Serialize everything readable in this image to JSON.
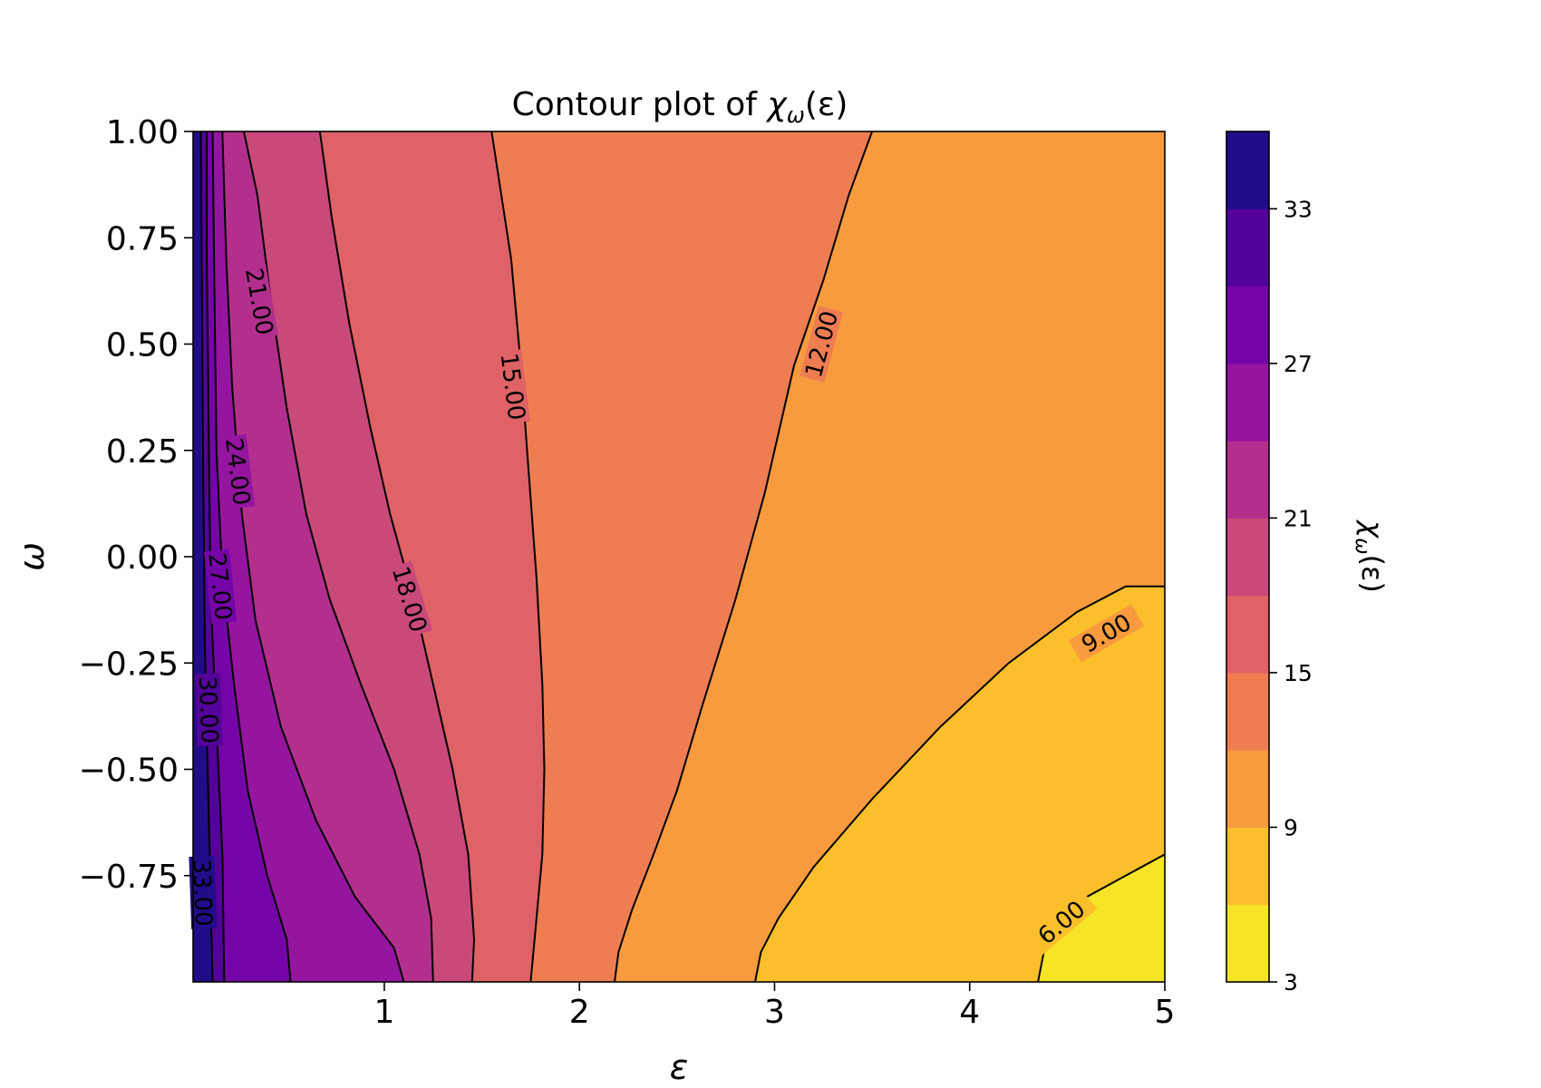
{
  "chart_data": {
    "type": "contour",
    "title_prefix": "Contour plot of ",
    "title_sym": "χ",
    "title_sub": "ω",
    "title_suffix": "(ε)",
    "xlabel": "ε",
    "ylabel": "ω",
    "xlim": [
      0.02,
      5
    ],
    "ylim": [
      -1.0,
      1.0
    ],
    "x_ticks": [
      1,
      2,
      3,
      4,
      5
    ],
    "x_tick_labels": [
      "1",
      "2",
      "3",
      "4",
      "5"
    ],
    "y_ticks": [
      1.0,
      0.75,
      0.5,
      0.25,
      0.0,
      -0.25,
      -0.5,
      -0.75
    ],
    "y_tick_labels": [
      "1.00",
      "0.75",
      "0.50",
      "0.25",
      "0.00",
      "−0.25",
      "−0.50",
      "−0.75"
    ],
    "levels": [
      3,
      6,
      9,
      12,
      15,
      18,
      21,
      24,
      27,
      30,
      33,
      36
    ],
    "colorbar_colors": [
      "#f5e526",
      "#fcbf2c",
      "#f89b3e",
      "#ee7d52",
      "#de6266",
      "#c9497a",
      "#b32f8d",
      "#9515a1",
      "#7504a8",
      "#530399",
      "#210c8a"
    ],
    "colorbar_ticks": [
      3,
      9,
      15,
      21,
      27,
      33
    ],
    "colorbar_tick_labels": [
      "3",
      "9",
      "15",
      "21",
      "27",
      "33"
    ],
    "colorbar_label_sym": "χ",
    "colorbar_label_sub": "ω",
    "colorbar_label_suffix": "(ε)",
    "contour_lines": [
      {
        "level": 6,
        "label": "6.00",
        "points": [
          [
            4.35,
            -1.0
          ],
          [
            4.38,
            -0.93
          ],
          [
            4.45,
            -0.87
          ],
          [
            4.6,
            -0.8
          ],
          [
            4.8,
            -0.75
          ],
          [
            5.0,
            -0.7
          ]
        ]
      },
      {
        "level": 9,
        "label": "9.00",
        "points": [
          [
            2.9,
            -1.0
          ],
          [
            2.93,
            -0.93
          ],
          [
            3.02,
            -0.85
          ],
          [
            3.2,
            -0.73
          ],
          [
            3.5,
            -0.57
          ],
          [
            3.85,
            -0.4
          ],
          [
            4.2,
            -0.25
          ],
          [
            4.55,
            -0.13
          ],
          [
            4.8,
            -0.07
          ],
          [
            5.0,
            -0.07
          ]
        ]
      },
      {
        "level": 12,
        "label": "12.00",
        "points": [
          [
            2.18,
            -1.0
          ],
          [
            2.2,
            -0.93
          ],
          [
            2.27,
            -0.83
          ],
          [
            2.38,
            -0.7
          ],
          [
            2.5,
            -0.55
          ],
          [
            2.63,
            -0.35
          ],
          [
            2.8,
            -0.1
          ],
          [
            2.95,
            0.15
          ],
          [
            3.1,
            0.45
          ],
          [
            3.25,
            0.65
          ],
          [
            3.38,
            0.85
          ],
          [
            3.5,
            1.0
          ]
        ]
      },
      {
        "level": 15,
        "label": "15.00",
        "points": [
          [
            1.75,
            -1.0
          ],
          [
            1.78,
            -0.85
          ],
          [
            1.81,
            -0.7
          ],
          [
            1.82,
            -0.5
          ],
          [
            1.81,
            -0.3
          ],
          [
            1.78,
            -0.05
          ],
          [
            1.74,
            0.2
          ],
          [
            1.7,
            0.45
          ],
          [
            1.65,
            0.7
          ],
          [
            1.6,
            0.85
          ],
          [
            1.55,
            1.0
          ]
        ]
      },
      {
        "level": 18,
        "label": "18.00",
        "points": [
          [
            1.45,
            -1.0
          ],
          [
            1.46,
            -0.9
          ],
          [
            1.43,
            -0.7
          ],
          [
            1.35,
            -0.5
          ],
          [
            1.25,
            -0.3
          ],
          [
            1.15,
            -0.1
          ],
          [
            1.03,
            0.1
          ],
          [
            0.93,
            0.3
          ],
          [
            0.82,
            0.55
          ],
          [
            0.73,
            0.8
          ],
          [
            0.67,
            1.0
          ]
        ]
      },
      {
        "level": 21,
        "label": "21.00",
        "points": [
          [
            1.25,
            -1.0
          ],
          [
            1.24,
            -0.85
          ],
          [
            1.18,
            -0.7
          ],
          [
            1.05,
            -0.5
          ],
          [
            0.88,
            -0.3
          ],
          [
            0.72,
            -0.1
          ],
          [
            0.6,
            0.1
          ],
          [
            0.5,
            0.35
          ],
          [
            0.42,
            0.6
          ],
          [
            0.35,
            0.85
          ],
          [
            0.28,
            1.0
          ]
        ]
      },
      {
        "level": 24,
        "label": "24.00",
        "points": [
          [
            1.1,
            -1.0
          ],
          [
            1.05,
            -0.92
          ],
          [
            0.85,
            -0.8
          ],
          [
            0.65,
            -0.62
          ],
          [
            0.47,
            -0.4
          ],
          [
            0.34,
            -0.15
          ],
          [
            0.27,
            0.1
          ],
          [
            0.22,
            0.4
          ],
          [
            0.19,
            0.7
          ],
          [
            0.17,
            1.0
          ]
        ]
      },
      {
        "level": 27,
        "label": "27.00",
        "points": [
          [
            0.52,
            -1.0
          ],
          [
            0.5,
            -0.9
          ],
          [
            0.4,
            -0.75
          ],
          [
            0.3,
            -0.55
          ],
          [
            0.23,
            -0.3
          ],
          [
            0.17,
            -0.05
          ],
          [
            0.14,
            0.25
          ],
          [
            0.13,
            0.6
          ],
          [
            0.12,
            1.0
          ]
        ]
      },
      {
        "level": 30,
        "label": "30.00",
        "points": [
          [
            0.18,
            -1.0
          ],
          [
            0.17,
            -0.7
          ],
          [
            0.14,
            -0.4
          ],
          [
            0.11,
            -0.1
          ],
          [
            0.1,
            0.3
          ],
          [
            0.09,
            0.7
          ],
          [
            0.09,
            1.0
          ]
        ]
      },
      {
        "level": 33,
        "label": "33.00",
        "points": [
          [
            0.12,
            -1.0
          ],
          [
            0.1,
            -0.6
          ],
          [
            0.08,
            -0.2
          ],
          [
            0.07,
            0.3
          ],
          [
            0.06,
            1.0
          ]
        ]
      }
    ],
    "contour_label_positions": [
      {
        "label": "6.00",
        "x": 4.47,
        "y": -0.86,
        "angle": -40
      },
      {
        "label": "9.00",
        "x": 4.7,
        "y": -0.18,
        "angle": -30
      },
      {
        "label": "12.00",
        "x": 3.24,
        "y": 0.5,
        "angle": -75
      },
      {
        "label": "15.00",
        "x": 1.66,
        "y": 0.4,
        "angle": 83
      },
      {
        "label": "18.00",
        "x": 1.13,
        "y": -0.1,
        "angle": 73
      },
      {
        "label": "21.00",
        "x": 0.36,
        "y": 0.6,
        "angle": 80
      },
      {
        "label": "24.00",
        "x": 0.25,
        "y": 0.2,
        "angle": 83
      },
      {
        "label": "27.00",
        "x": 0.16,
        "y": -0.07,
        "angle": 84
      },
      {
        "label": "30.00",
        "x": 0.1,
        "y": -0.36,
        "angle": 88
      },
      {
        "label": "33.00",
        "x": 0.07,
        "y": -0.79,
        "angle": 88
      }
    ]
  }
}
